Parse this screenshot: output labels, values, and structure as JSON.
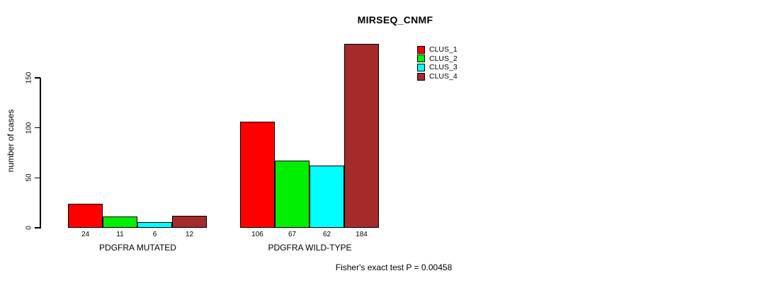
{
  "chart_data": {
    "type": "bar",
    "title": "MIRSEQ_CNMF",
    "ylabel": "number of cases",
    "yticks": [
      0,
      50,
      100,
      150
    ],
    "ylim": [
      0,
      184
    ],
    "grid": false,
    "legend_position": "top-right-inside",
    "categories": [
      "PDGFRA MUTATED",
      "PDGFRA WILD-TYPE"
    ],
    "series": [
      {
        "name": "CLUS_1",
        "color": "#FF0000",
        "values": [
          24,
          106
        ]
      },
      {
        "name": "CLUS_2",
        "color": "#00EE00",
        "values": [
          11,
          67
        ]
      },
      {
        "name": "CLUS_3",
        "color": "#00FFFF",
        "values": [
          6,
          62
        ]
      },
      {
        "name": "CLUS_4",
        "color": "#A52A2A",
        "values": [
          12,
          184
        ]
      }
    ],
    "annotation": "Fisher's exact test P = 0.00458"
  }
}
